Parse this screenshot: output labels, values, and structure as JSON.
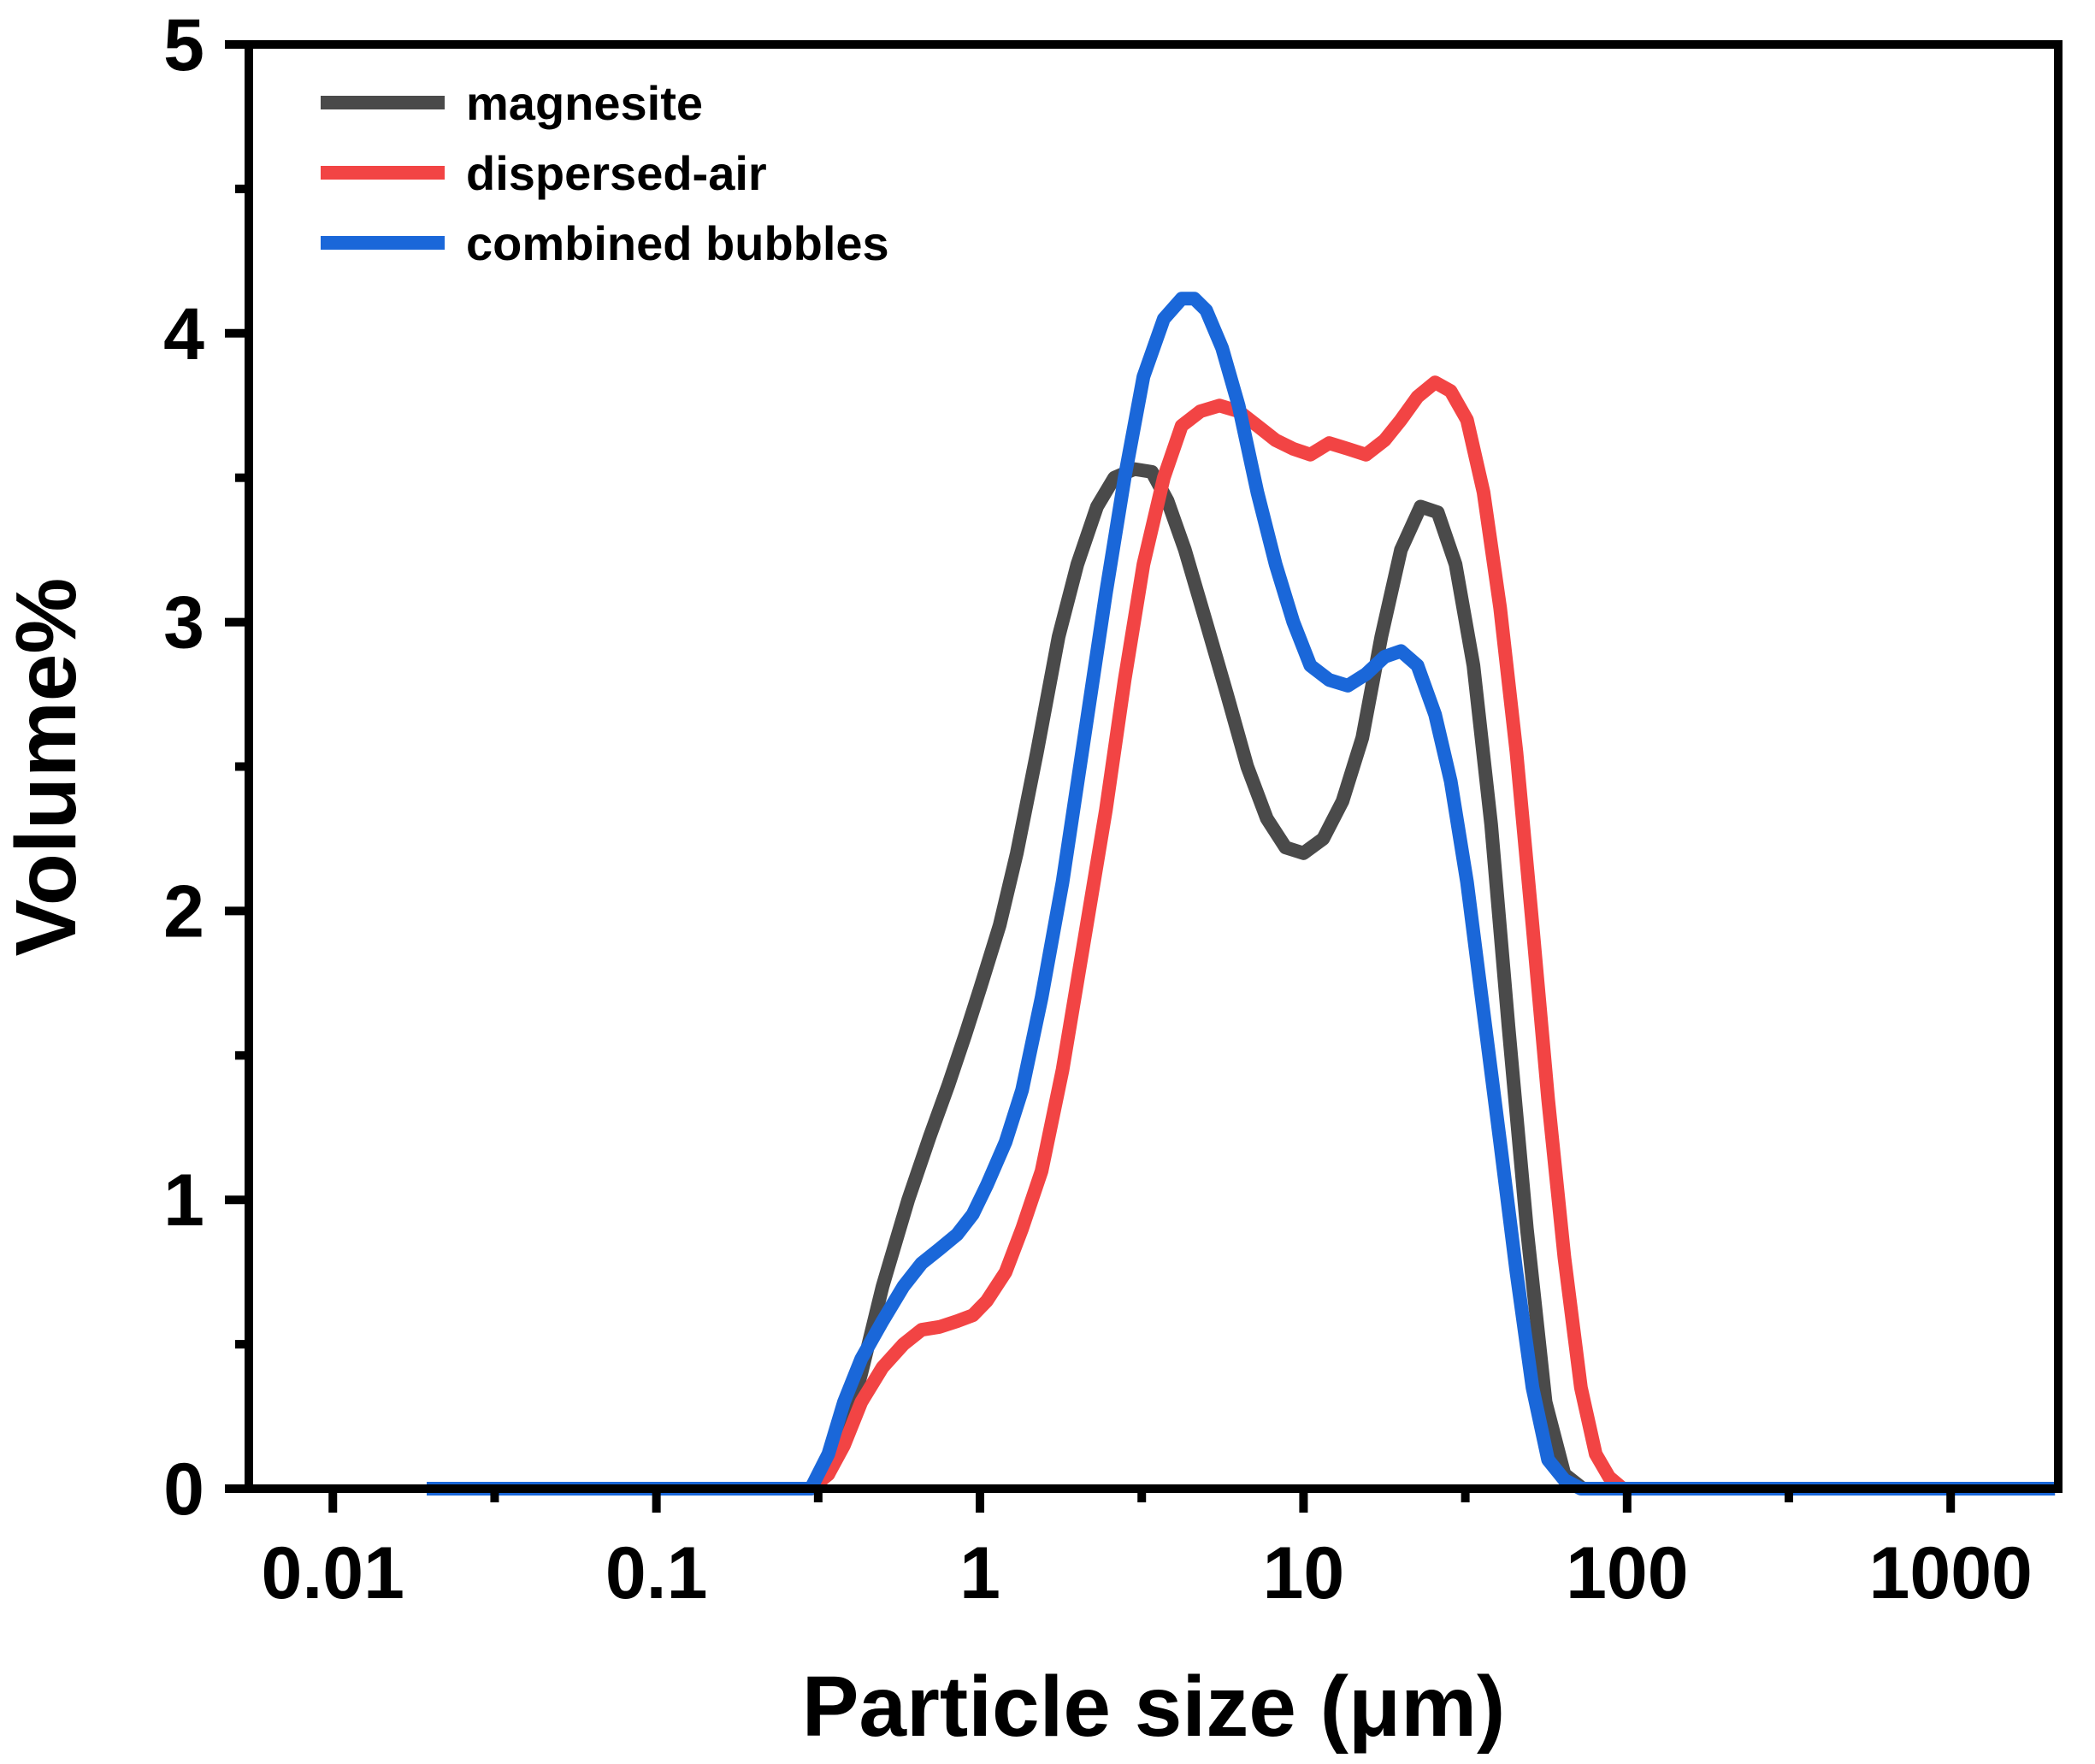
{
  "chart_data": {
    "type": "line",
    "title": "",
    "xlabel": "Particle size (μm)",
    "ylabel": "Volume%",
    "x_scale": "log",
    "xlim": [
      0.0055,
      2150
    ],
    "ylim": [
      0,
      5
    ],
    "x_ticks": [
      0.01,
      0.1,
      1,
      10,
      100,
      1000
    ],
    "x_tick_labels": [
      "0.01",
      "0.1",
      "1",
      "10",
      "100",
      "1000"
    ],
    "y_ticks": [
      0,
      1,
      2,
      3,
      4,
      5
    ],
    "y_tick_labels": [
      "0",
      "1",
      "2",
      "3",
      "4",
      "5"
    ],
    "grid": false,
    "legend_position": "top-left",
    "series": [
      {
        "name": "magnesite",
        "color": "#4a4a4a",
        "x": [
          0.0195,
          0.05,
          0.1,
          0.2,
          0.3,
          0.34,
          0.38,
          0.43,
          0.5,
          0.6,
          0.7,
          0.8,
          0.9,
          1.0,
          1.15,
          1.3,
          1.5,
          1.75,
          2.0,
          2.3,
          2.6,
          3.0,
          3.4,
          3.8,
          4.3,
          5.0,
          5.8,
          6.7,
          7.7,
          8.8,
          10.0,
          11.5,
          13.2,
          15.2,
          17.4,
          20.0,
          23.0,
          26.0,
          29.5,
          33.5,
          38.0,
          43.0,
          49.0,
          56.0,
          64.0,
          73.0,
          85.0,
          200,
          500,
          2100
        ],
        "y": [
          0,
          0,
          0,
          0,
          0,
          0.05,
          0.18,
          0.4,
          0.7,
          1.0,
          1.22,
          1.4,
          1.57,
          1.73,
          1.95,
          2.2,
          2.55,
          2.95,
          3.2,
          3.4,
          3.5,
          3.53,
          3.52,
          3.42,
          3.25,
          3.0,
          2.75,
          2.5,
          2.32,
          2.22,
          2.2,
          2.25,
          2.38,
          2.6,
          2.95,
          3.25,
          3.4,
          3.38,
          3.2,
          2.85,
          2.3,
          1.6,
          0.9,
          0.3,
          0.05,
          0,
          0,
          0,
          0,
          0
        ]
      },
      {
        "name": "dispersed-air",
        "color": "#f24444",
        "x": [
          0.0195,
          0.05,
          0.1,
          0.2,
          0.3,
          0.34,
          0.38,
          0.43,
          0.5,
          0.58,
          0.66,
          0.75,
          0.85,
          0.95,
          1.05,
          1.2,
          1.35,
          1.55,
          1.8,
          2.1,
          2.45,
          2.8,
          3.2,
          3.7,
          4.2,
          4.8,
          5.5,
          6.3,
          7.2,
          8.2,
          9.3,
          10.5,
          12.0,
          13.7,
          15.6,
          17.8,
          20.0,
          22.5,
          25.5,
          28.5,
          32.0,
          36.0,
          40.5,
          45.5,
          51.0,
          57.0,
          64.0,
          72.0,
          80.0,
          88.0,
          97.0,
          110,
          200,
          500,
          2100
        ],
        "y": [
          0,
          0,
          0,
          0,
          0,
          0.05,
          0.15,
          0.3,
          0.42,
          0.5,
          0.55,
          0.56,
          0.58,
          0.6,
          0.65,
          0.75,
          0.9,
          1.1,
          1.45,
          1.9,
          2.35,
          2.8,
          3.2,
          3.5,
          3.68,
          3.73,
          3.75,
          3.73,
          3.68,
          3.63,
          3.6,
          3.58,
          3.62,
          3.6,
          3.58,
          3.63,
          3.7,
          3.78,
          3.83,
          3.8,
          3.7,
          3.45,
          3.05,
          2.55,
          1.95,
          1.35,
          0.8,
          0.35,
          0.12,
          0.04,
          0,
          0,
          0,
          0,
          0
        ]
      },
      {
        "name": "combined bubbles",
        "color": "#1a67d9",
        "x": [
          0.0195,
          0.05,
          0.1,
          0.2,
          0.3,
          0.34,
          0.38,
          0.43,
          0.5,
          0.58,
          0.66,
          0.75,
          0.85,
          0.95,
          1.05,
          1.2,
          1.35,
          1.55,
          1.8,
          2.1,
          2.45,
          2.8,
          3.2,
          3.7,
          4.2,
          4.6,
          5.0,
          5.6,
          6.3,
          7.2,
          8.2,
          9.3,
          10.5,
          12.0,
          13.7,
          15.6,
          17.8,
          20.0,
          22.5,
          25.5,
          28.5,
          32.0,
          36.0,
          40.5,
          45.5,
          51.0,
          57.0,
          64.0,
          72.0,
          82.0,
          100,
          200,
          500,
          2100
        ],
        "y": [
          0,
          0,
          0,
          0,
          0,
          0.12,
          0.3,
          0.45,
          0.58,
          0.7,
          0.78,
          0.83,
          0.88,
          0.95,
          1.05,
          1.2,
          1.38,
          1.7,
          2.1,
          2.6,
          3.1,
          3.5,
          3.85,
          4.05,
          4.12,
          4.12,
          4.08,
          3.95,
          3.75,
          3.45,
          3.2,
          3.0,
          2.85,
          2.8,
          2.78,
          2.82,
          2.88,
          2.9,
          2.85,
          2.68,
          2.45,
          2.1,
          1.65,
          1.2,
          0.75,
          0.35,
          0.1,
          0.03,
          0,
          0,
          0,
          0,
          0,
          0
        ]
      }
    ]
  }
}
